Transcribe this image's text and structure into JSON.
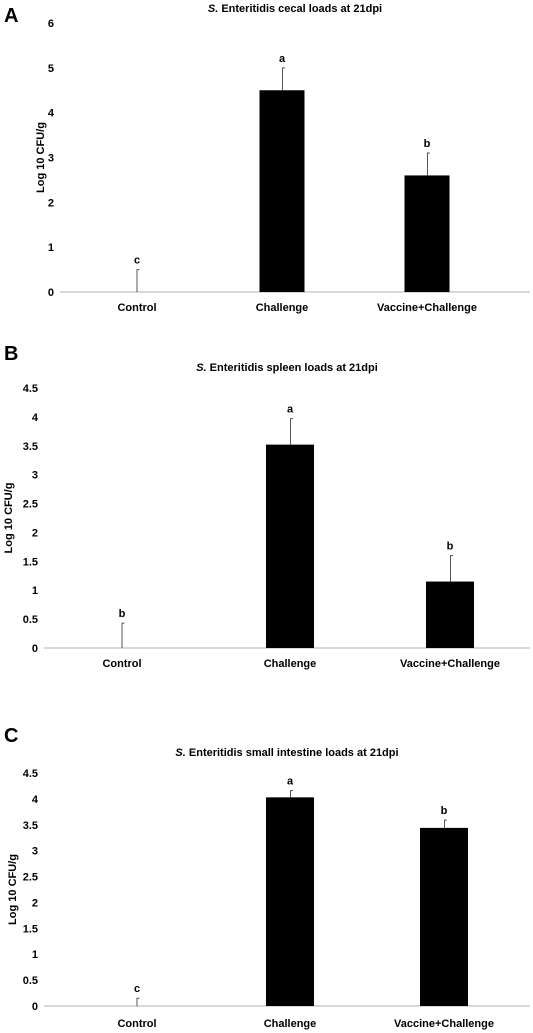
{
  "chart_data": [
    {
      "panel": "A",
      "type": "bar",
      "title": "S. Enteritidis cecal loads  at 21dpi",
      "title_italic": "S.",
      "title_rest": " Enteritidis cecal loads  at 21dpi",
      "ylabel": "Log 10 CFU/g",
      "xlabel": "",
      "ylim": [
        0,
        6
      ],
      "yticks": [
        0,
        1,
        2,
        3,
        4,
        5,
        6
      ],
      "ytick_labels": [
        "0",
        "1",
        "2",
        "3",
        "4",
        "5",
        "6"
      ],
      "grid": false,
      "categories": [
        "Control",
        "Challenge",
        "Vaccine+Challenge"
      ],
      "values": [
        0,
        4.5,
        2.6
      ],
      "errors": [
        0.5,
        0.5,
        0.5
      ],
      "significance": [
        "c",
        "a",
        "b"
      ],
      "bar_color": "#000000"
    },
    {
      "panel": "B",
      "type": "bar",
      "title": "S. Enteritidis spleen loads at 21dpi",
      "title_italic": "S.",
      "title_rest": " Enteritidis spleen loads at 21dpi",
      "ylabel": "Log 10 CFU/g",
      "xlabel": "",
      "ylim": [
        0,
        4.5
      ],
      "yticks": [
        0,
        0.5,
        1,
        1.5,
        2,
        2.5,
        3,
        3.5,
        4,
        4.5
      ],
      "ytick_labels": [
        "0",
        "0.5",
        "1",
        "1.5",
        "2",
        "2.5",
        "3",
        "3.5",
        "4",
        "4.5"
      ],
      "grid": false,
      "categories": [
        "Control",
        "Challenge",
        "Vaccine+Challenge"
      ],
      "values": [
        0,
        3.52,
        1.15
      ],
      "errors": [
        0.43,
        0.45,
        0.45
      ],
      "significance": [
        "b",
        "a",
        "b"
      ],
      "bar_color": "#000000"
    },
    {
      "panel": "C",
      "type": "bar",
      "title": "S. Enteritidis small intestine loads at 21dpi",
      "title_italic": "S.",
      "title_rest": " Enteritidis small intestine loads at 21dpi",
      "ylabel": "Log 10 CFU/g",
      "xlabel": "",
      "ylim": [
        0,
        4.5
      ],
      "yticks": [
        0,
        0.5,
        1,
        1.5,
        2,
        2.5,
        3,
        3.5,
        4,
        4.5
      ],
      "ytick_labels": [
        "0",
        "0.5",
        "1",
        "1.5",
        "2",
        "2.5",
        "3",
        "3.5",
        "4",
        "4.5"
      ],
      "grid": false,
      "categories": [
        "Control",
        "Challenge",
        "Vaccine+Challenge"
      ],
      "values": [
        0,
        4.03,
        3.44
      ],
      "errors": [
        0.15,
        0.13,
        0.15
      ],
      "significance": [
        "c",
        "a",
        "b"
      ],
      "bar_color": "#000000"
    }
  ]
}
